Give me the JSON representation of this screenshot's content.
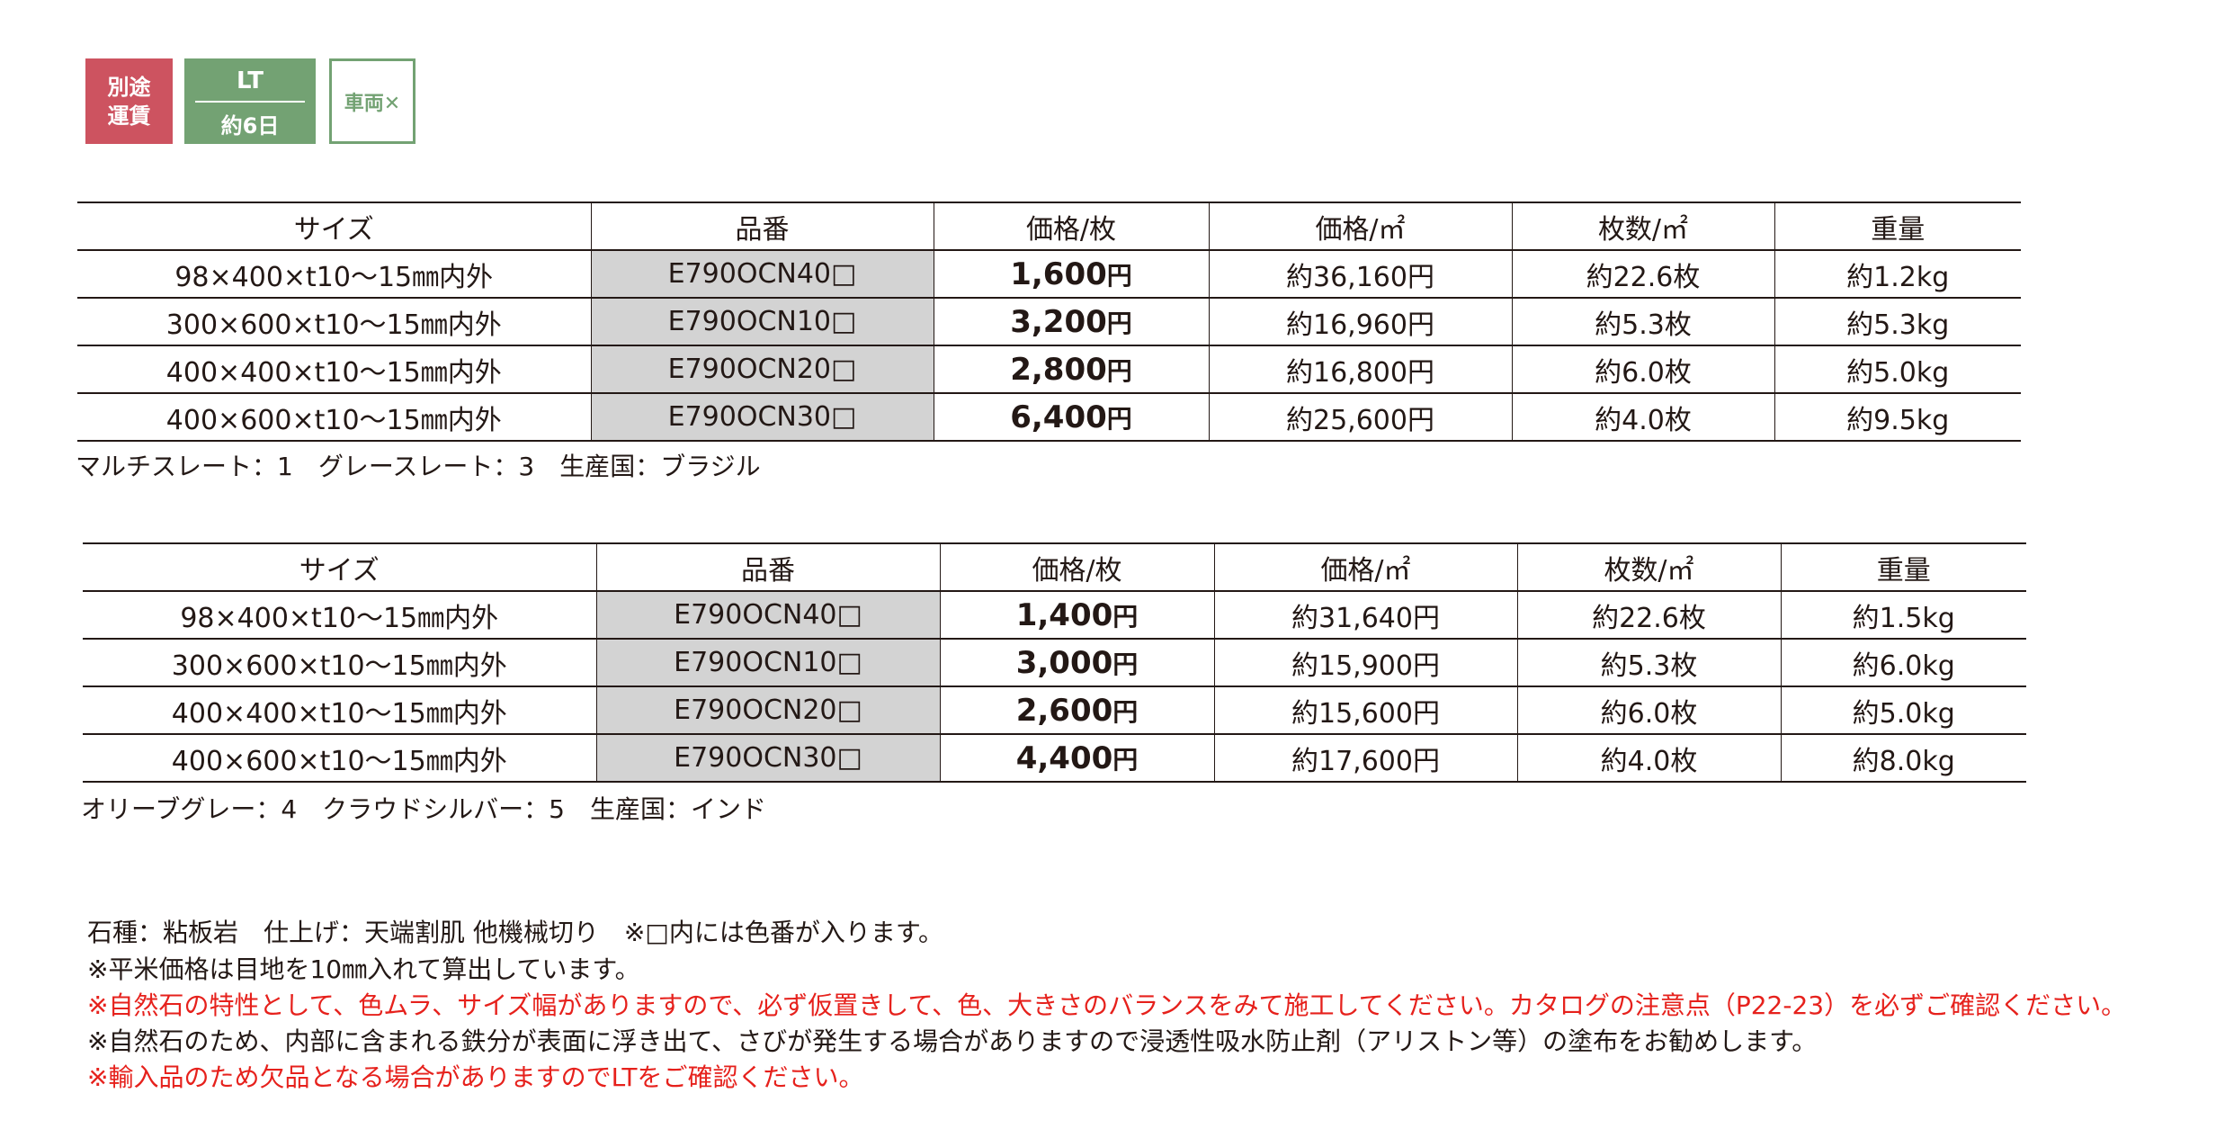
{
  "badges": {
    "shipping": [
      "別途",
      "運賃"
    ],
    "lead_time": {
      "top": "LT",
      "bottom": "約6日"
    },
    "vehicle": "車両✕",
    "colors": {
      "shipping": "#cd5360",
      "lead_time": "#73a273",
      "vehicle_border": "#73a273"
    }
  },
  "headers": [
    "サイズ",
    "品番",
    "価格/枚",
    "価格/㎡",
    "枚数/㎡",
    "重量"
  ],
  "table1": {
    "rows": [
      {
        "size": "98×400×t10～15㎜内外",
        "code": "E790OCN40□",
        "price": "1,600",
        "yen": "円",
        "price_m2": "約36,160円",
        "pcs_m2": "約22.6枚",
        "weight": "約1.2kg"
      },
      {
        "size": "300×600×t10～15㎜内外",
        "code": "E790OCN10□",
        "price": "3,200",
        "yen": "円",
        "price_m2": "約16,960円",
        "pcs_m2": "約5.3枚",
        "weight": "約5.3kg"
      },
      {
        "size": "400×400×t10～15㎜内外",
        "code": "E790OCN20□",
        "price": "2,800",
        "yen": "円",
        "price_m2": "約16,800円",
        "pcs_m2": "約6.0枚",
        "weight": "約5.0kg"
      },
      {
        "size": "400×600×t10～15㎜内外",
        "code": "E790OCN30□",
        "price": "6,400",
        "yen": "円",
        "price_m2": "約25,600円",
        "pcs_m2": "約4.0枚",
        "weight": "約9.5kg"
      }
    ],
    "note": "マルチスレート：1　グレースレート：3　生産国：ブラジル"
  },
  "table2": {
    "rows": [
      {
        "size": "98×400×t10～15㎜内外",
        "code": "E790OCN40□",
        "price": "1,400",
        "yen": "円",
        "price_m2": "約31,640円",
        "pcs_m2": "約22.6枚",
        "weight": "約1.5kg"
      },
      {
        "size": "300×600×t10～15㎜内外",
        "code": "E790OCN10□",
        "price": "3,000",
        "yen": "円",
        "price_m2": "約15,900円",
        "pcs_m2": "約5.3枚",
        "weight": "約6.0kg"
      },
      {
        "size": "400×400×t10～15㎜内外",
        "code": "E790OCN20□",
        "price": "2,600",
        "yen": "円",
        "price_m2": "約15,600円",
        "pcs_m2": "約6.0枚",
        "weight": "約5.0kg"
      },
      {
        "size": "400×600×t10～15㎜内外",
        "code": "E790OCN30□",
        "price": "4,400",
        "yen": "円",
        "price_m2": "約17,600円",
        "pcs_m2": "約4.0枚",
        "weight": "約8.0kg"
      }
    ],
    "note": "オリーブグレー：4　クラウドシルバー：5　生産国：インド"
  },
  "notes": [
    {
      "text": "石種：粘板岩　仕上げ：天端割肌 他機械切り　※□内には色番が入ります。",
      "color": "#231815"
    },
    {
      "text": "※平米価格は目地を10㎜入れて算出しています。",
      "color": "#231815"
    },
    {
      "text": "※自然石の特性として、色ムラ、サイズ幅がありますので、必ず仮置きして、色、大きさのバランスをみて施工してください。カタログの注意点（P22-23）を必ずご確認ください。",
      "color": "#e6211c"
    },
    {
      "text": "※自然石のため、内部に含まれる鉄分が表面に浮き出て、さびが発生する場合がありますので浸透性吸水防止剤（アリストン等）の塗布をお勧めします。",
      "color": "#231815"
    },
    {
      "text": "※輸入品のため欠品となる場合がありますのでLTをご確認ください。",
      "color": "#e6211c"
    }
  ]
}
